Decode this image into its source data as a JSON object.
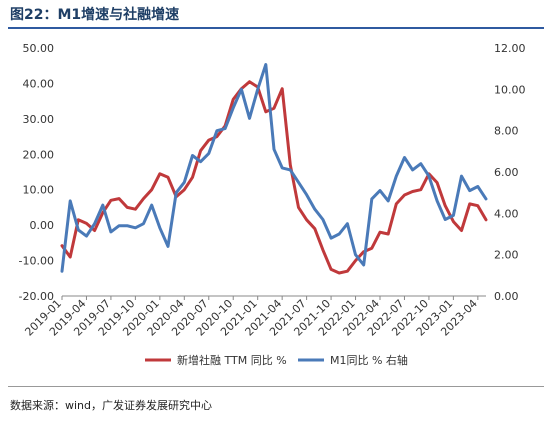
{
  "header": {
    "title": "图22：M1增速与社融增速"
  },
  "footer": {
    "source": "数据来源：wind，广发证券发展研究中心"
  },
  "colors": {
    "social_financing": "#c0393b",
    "m1": "#4a7ab8",
    "axis": "#888888",
    "text": "#333333"
  },
  "chart_data": {
    "type": "line",
    "title": "图22：M1增速与社融增速",
    "x_tick_labels": [
      "2019-01",
      "2019-04",
      "2019-07",
      "2019-10",
      "2020-01",
      "2020-04",
      "2020-07",
      "2020-10",
      "2021-01",
      "2021-04",
      "2021-07",
      "2021-10",
      "2022-01",
      "2022-04",
      "2022-07",
      "2022-10",
      "2023-01",
      "2023-04"
    ],
    "x_range": [
      "2019-01",
      "2023-05"
    ],
    "y_left": {
      "ylim": [
        -20,
        50
      ],
      "ticks": [
        "-20.00",
        "-10.00",
        "0.00",
        "10.00",
        "20.00",
        "30.00",
        "40.00",
        "50.00"
      ]
    },
    "y_right": {
      "ylim": [
        0,
        12
      ],
      "ticks": [
        "0.00",
        "2.00",
        "4.00",
        "6.00",
        "8.00",
        "10.00",
        "12.00"
      ]
    },
    "grid": false,
    "legend": {
      "placement": "bottom"
    },
    "series": [
      {
        "name": "新增社融 TTM 同比 %",
        "axis": "left",
        "color": "#c0393b",
        "points": [
          [
            "2019-01",
            -5.8
          ],
          [
            "2019-02",
            -9.0
          ],
          [
            "2019-03",
            1.5
          ],
          [
            "2019-04",
            0.5
          ],
          [
            "2019-05",
            -1.5
          ],
          [
            "2019-06",
            3.5
          ],
          [
            "2019-07",
            7.0
          ],
          [
            "2019-08",
            7.5
          ],
          [
            "2019-09",
            5.0
          ],
          [
            "2019-10",
            4.5
          ],
          [
            "2019-11",
            7.5
          ],
          [
            "2019-12",
            10.0
          ],
          [
            "2020-01",
            14.5
          ],
          [
            "2020-02",
            13.5
          ],
          [
            "2020-03",
            8.0
          ],
          [
            "2020-04",
            10.0
          ],
          [
            "2020-05",
            13.5
          ],
          [
            "2020-06",
            21.0
          ],
          [
            "2020-07",
            24.0
          ],
          [
            "2020-08",
            25.0
          ],
          [
            "2020-09",
            28.0
          ],
          [
            "2020-10",
            35.5
          ],
          [
            "2020-11",
            38.5
          ],
          [
            "2020-12",
            40.5
          ],
          [
            "2021-01",
            39.0
          ],
          [
            "2021-02",
            32.0
          ],
          [
            "2021-03",
            33.0
          ],
          [
            "2021-04",
            38.5
          ],
          [
            "2021-05",
            17.0
          ],
          [
            "2021-06",
            5.0
          ],
          [
            "2021-07",
            1.5
          ],
          [
            "2021-08",
            -1.0
          ],
          [
            "2021-09",
            -7.0
          ],
          [
            "2021-10",
            -12.5
          ],
          [
            "2021-11",
            -13.5
          ],
          [
            "2021-12",
            -13.0
          ],
          [
            "2022-01",
            -10.0
          ],
          [
            "2022-02",
            -7.5
          ],
          [
            "2022-03",
            -6.5
          ],
          [
            "2022-04",
            -2.0
          ],
          [
            "2022-05",
            -2.5
          ],
          [
            "2022-06",
            6.0
          ],
          [
            "2022-07",
            8.5
          ],
          [
            "2022-08",
            9.5
          ],
          [
            "2022-09",
            10.0
          ],
          [
            "2022-10",
            14.5
          ],
          [
            "2022-11",
            12.0
          ],
          [
            "2022-12",
            5.5
          ],
          [
            "2023-01",
            1.0
          ],
          [
            "2023-02",
            -1.5
          ],
          [
            "2023-03",
            6.0
          ],
          [
            "2023-04",
            5.5
          ],
          [
            "2023-05",
            1.5
          ]
        ]
      },
      {
        "name": "M1同比 % 右轴",
        "axis": "right",
        "color": "#4a7ab8",
        "points": [
          [
            "2019-01",
            1.2
          ],
          [
            "2019-02",
            4.6
          ],
          [
            "2019-03",
            3.2
          ],
          [
            "2019-04",
            2.9
          ],
          [
            "2019-05",
            3.5
          ],
          [
            "2019-06",
            4.4
          ],
          [
            "2019-07",
            3.1
          ],
          [
            "2019-08",
            3.4
          ],
          [
            "2019-09",
            3.4
          ],
          [
            "2019-10",
            3.3
          ],
          [
            "2019-11",
            3.5
          ],
          [
            "2019-12",
            4.4
          ],
          [
            "2020-01",
            3.3
          ],
          [
            "2020-02",
            2.4
          ],
          [
            "2020-03",
            5.0
          ],
          [
            "2020-04",
            5.5
          ],
          [
            "2020-05",
            6.8
          ],
          [
            "2020-06",
            6.5
          ],
          [
            "2020-07",
            6.9
          ],
          [
            "2020-08",
            8.0
          ],
          [
            "2020-09",
            8.1
          ],
          [
            "2020-10",
            9.1
          ],
          [
            "2020-11",
            10.0
          ],
          [
            "2020-12",
            8.6
          ],
          [
            "2021-01",
            10.0
          ],
          [
            "2021-02",
            11.2
          ],
          [
            "2021-03",
            7.1
          ],
          [
            "2021-04",
            6.2
          ],
          [
            "2021-05",
            6.1
          ],
          [
            "2021-06",
            5.5
          ],
          [
            "2021-07",
            4.9
          ],
          [
            "2021-08",
            4.2
          ],
          [
            "2021-09",
            3.7
          ],
          [
            "2021-10",
            2.8
          ],
          [
            "2021-11",
            3.0
          ],
          [
            "2021-12",
            3.5
          ],
          [
            "2022-01",
            2.0
          ],
          [
            "2022-02",
            1.5
          ],
          [
            "2022-03",
            4.7
          ],
          [
            "2022-04",
            5.1
          ],
          [
            "2022-05",
            4.6
          ],
          [
            "2022-06",
            5.8
          ],
          [
            "2022-07",
            6.7
          ],
          [
            "2022-08",
            6.1
          ],
          [
            "2022-09",
            6.4
          ],
          [
            "2022-10",
            5.8
          ],
          [
            "2022-11",
            4.6
          ],
          [
            "2022-12",
            3.7
          ],
          [
            "2023-01",
            3.9
          ],
          [
            "2023-02",
            5.8
          ],
          [
            "2023-03",
            5.1
          ],
          [
            "2023-04",
            5.3
          ],
          [
            "2023-05",
            4.7
          ]
        ]
      }
    ]
  }
}
